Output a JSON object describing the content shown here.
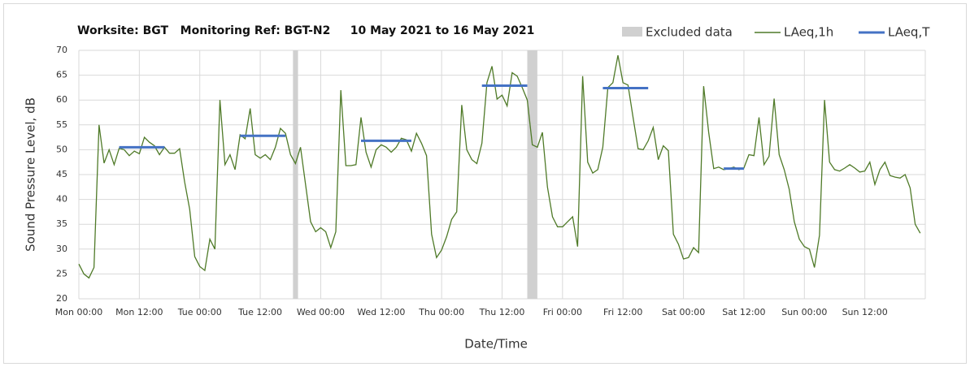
{
  "chart_data": {
    "type": "line",
    "title": "Worksite: BGT   Monitoring Ref: BGT-N2     10 May 2021 to 16 May 2021",
    "xlabel": "Date/Time",
    "ylabel": "Sound Pressure Level, dB",
    "x": [
      0,
      1,
      2,
      3,
      4,
      5,
      6,
      7,
      8,
      9,
      10,
      11,
      12,
      13,
      14,
      15,
      16,
      17,
      18,
      19,
      20,
      21,
      22,
      23,
      24,
      25,
      26,
      27,
      28,
      29,
      30,
      31,
      32,
      33,
      34,
      35,
      36,
      37,
      38,
      39,
      40,
      41,
      42,
      43,
      44,
      45,
      46,
      47,
      48,
      49,
      50,
      51,
      52,
      53,
      54,
      55,
      56,
      57,
      58,
      59,
      60,
      61,
      62,
      63,
      64,
      65,
      66,
      67,
      68,
      69,
      70,
      71,
      72,
      73,
      74,
      75,
      76,
      77,
      78,
      79,
      80,
      81,
      82,
      83,
      84,
      85,
      86,
      87,
      88,
      89,
      90,
      91,
      92,
      93,
      94,
      95,
      96,
      97,
      98,
      99,
      100,
      101,
      102,
      103,
      104,
      105,
      106,
      107,
      108,
      109,
      110,
      111,
      112,
      113,
      114,
      115,
      116,
      117,
      118,
      119,
      120,
      121,
      122,
      123,
      124,
      125,
      126,
      127,
      128,
      129,
      130,
      131,
      132,
      133,
      134,
      135,
      136,
      137,
      138,
      139,
      140,
      141,
      142,
      143,
      144,
      145,
      146,
      147,
      148,
      149,
      150,
      151,
      152,
      153,
      154,
      155,
      156,
      157,
      158,
      159,
      160,
      161,
      162,
      163,
      164,
      165,
      166,
      167
    ],
    "xlim": [
      0,
      168
    ],
    "xticks": [
      {
        "value": 0,
        "label": "Mon 00:00"
      },
      {
        "value": 12,
        "label": "Mon 12:00"
      },
      {
        "value": 24,
        "label": "Tue 00:00"
      },
      {
        "value": 36,
        "label": "Tue 12:00"
      },
      {
        "value": 48,
        "label": "Wed 00:00"
      },
      {
        "value": 60,
        "label": "Wed 12:00"
      },
      {
        "value": 72,
        "label": "Thu 00:00"
      },
      {
        "value": 84,
        "label": "Thu 12:00"
      },
      {
        "value": 96,
        "label": "Fri 00:00"
      },
      {
        "value": 108,
        "label": "Fri 12:00"
      },
      {
        "value": 120,
        "label": "Sat 00:00"
      },
      {
        "value": 132,
        "label": "Sat 12:00"
      },
      {
        "value": 144,
        "label": "Sun 00:00"
      },
      {
        "value": 156,
        "label": "Sun 12:00"
      }
    ],
    "ylim": [
      20,
      70
    ],
    "yticks": [
      20,
      25,
      30,
      35,
      40,
      45,
      50,
      55,
      60,
      65,
      70
    ],
    "grid": true,
    "series": [
      {
        "name": "LAeq,1h",
        "color": "#4f7a28",
        "values": [
          27,
          25,
          24.2,
          26.3,
          55,
          47.3,
          50,
          47,
          50.3,
          50,
          48.8,
          49.7,
          49.2,
          52.5,
          51.5,
          50.8,
          49,
          50.5,
          49.3,
          49.3,
          50.2,
          43.5,
          38,
          28.5,
          26.5,
          25.7,
          32,
          30,
          60,
          47,
          49,
          46,
          53,
          52.2,
          58.3,
          49,
          48.3,
          49,
          48,
          50.5,
          54.3,
          53.3,
          49,
          47.2,
          50.5,
          43,
          35.5,
          33.5,
          34.3,
          33.5,
          30.3,
          33.5,
          62,
          46.8,
          46.8,
          47,
          56.5,
          49.5,
          46.5,
          50,
          51,
          50.5,
          49.5,
          50.5,
          52.3,
          52,
          49.7,
          53.3,
          51.3,
          48.8,
          33,
          28.3,
          29.8,
          32.5,
          36,
          37.5,
          59,
          50,
          48,
          47.2,
          51.3,
          63.5,
          66.8,
          60.2,
          61,
          58.8,
          65.5,
          64.8,
          62.5,
          60,
          51,
          50.5,
          53.5,
          42.5,
          36.5,
          34.5,
          34.5,
          35.5,
          36.5,
          30.5,
          64.8,
          47.5,
          45.3,
          46,
          50.5,
          62.5,
          63.5,
          69,
          63.5,
          63,
          56.5,
          50.2,
          50,
          51.8,
          54.5,
          48,
          50.8,
          49.8,
          33,
          31,
          28,
          28.3,
          30.3,
          29.3,
          62.8,
          53.5,
          46.2,
          46.5,
          46,
          46.2,
          46.5,
          46,
          46.3,
          49,
          48.8,
          56.5,
          47,
          48.7,
          60.3,
          49,
          46,
          42,
          35.5,
          32,
          30.5,
          30,
          26.3,
          32.8,
          60,
          47.5,
          46,
          45.7,
          46.3,
          47,
          46.3,
          45.5,
          45.7,
          47.5,
          43,
          46,
          47.5,
          44.8,
          44.5,
          44.3,
          45,
          42.3,
          35,
          33.2
        ]
      }
    ],
    "excluded": {
      "name": "Excluded data",
      "color": "#d0d0d0",
      "ranges": [
        [
          43,
          44
        ],
        [
          90,
          92
        ]
      ]
    },
    "period_levels": {
      "name": "LAeq,T",
      "color": "#4472c4",
      "segments": [
        {
          "start": 8,
          "end": 17,
          "value": 50.5
        },
        {
          "start": 32,
          "end": 41,
          "value": 52.8
        },
        {
          "start": 56,
          "end": 66,
          "value": 51.8
        },
        {
          "start": 80,
          "end": 89,
          "value": 62.9
        },
        {
          "start": 104,
          "end": 113,
          "value": 62.4
        },
        {
          "start": 128,
          "end": 132,
          "value": 46.2
        }
      ]
    }
  }
}
